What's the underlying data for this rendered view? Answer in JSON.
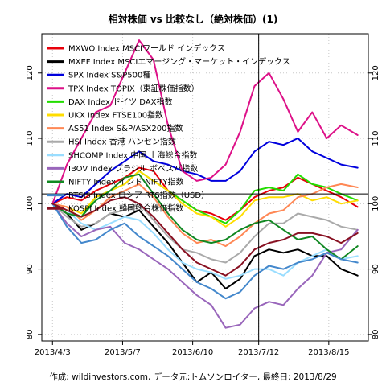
{
  "chart_data": {
    "type": "line",
    "title": "相対株価 vs 比較なし（絶対株価）(1)",
    "caption": "作成: wildinvestors.com, データ元:トムソンロイター, 最終日: 2013/8/29",
    "x_ticks": [
      "2013/4/3",
      "2013/5/7",
      "2013/6/10",
      "2013/7/12",
      "2013/8/15"
    ],
    "x": [
      "2013/4/3",
      "2013/4/10",
      "2013/4/17",
      "2013/4/24",
      "2013/5/1",
      "2013/5/8",
      "2013/5/15",
      "2013/5/22",
      "2013/5/29",
      "2013/6/5",
      "2013/6/12",
      "2013/6/19",
      "2013/6/26",
      "2013/7/3",
      "2013/7/10",
      "2013/7/17",
      "2013/7/24",
      "2013/7/31",
      "2013/8/7",
      "2013/8/14",
      "2013/8/21",
      "2013/8/29"
    ],
    "y_ticks": [
      80,
      90,
      100,
      110,
      120
    ],
    "ylim": [
      79,
      126
    ],
    "reference_line": 101.5,
    "cursor_date": "2013/7/12",
    "series": [
      {
        "name": "MXWO Index MSCIワールド インデックス",
        "color": "#e8000b",
        "values": [
          100,
          101,
          100.5,
          102,
          103,
          104,
          105.5,
          105,
          102,
          100.5,
          99,
          98.5,
          97.5,
          99,
          101,
          102,
          102.5,
          104,
          103,
          102,
          101,
          99.5
        ]
      },
      {
        "name": "MXEF Index MSCIエマージング・マーケット・インデックス",
        "color": "#000000",
        "values": [
          100,
          98.5,
          96,
          97,
          98.5,
          98,
          99,
          96.5,
          94,
          91,
          88,
          89.5,
          87,
          88.5,
          92,
          93,
          92.5,
          93,
          92,
          92,
          90,
          89
        ]
      },
      {
        "name": "SPX Index S&P500種",
        "color": "#0000dd",
        "values": [
          100,
          101.5,
          101,
          103,
          105,
          106.5,
          108,
          106.5,
          106,
          105,
          104.5,
          103.5,
          103.5,
          105,
          108,
          109.5,
          109,
          110,
          108,
          107,
          106,
          105.5
        ]
      },
      {
        "name": "TPX Index TOPIX（東証株価指数）",
        "color": "#dd1188",
        "values": [
          100,
          106,
          110,
          114,
          115,
          120,
          125,
          122,
          112,
          105,
          103.5,
          104,
          106,
          111,
          118,
          120,
          116,
          111,
          114,
          110,
          112,
          110.5
        ]
      },
      {
        "name": "DAX Index ドイツ DAX指数",
        "color": "#22dd00",
        "values": [
          100,
          99,
          98,
          101,
          102,
          103,
          105,
          103.5,
          102,
          100.5,
          99,
          98,
          97,
          99,
          102,
          102.5,
          102,
          104.5,
          103,
          102.5,
          101.5,
          100.5
        ]
      },
      {
        "name": "UKX Index FTSE100指数",
        "color": "#ffdd00",
        "values": [
          100,
          99.5,
          98.5,
          101,
          102,
          103,
          105,
          103.5,
          102,
          100,
          98.5,
          98,
          96.5,
          98,
          100.5,
          101,
          101,
          101.5,
          100.5,
          101,
          100,
          100.5
        ]
      },
      {
        "name": "AS51 Index S&P/ASX200指数",
        "color": "#ff8855",
        "values": [
          100,
          99.5,
          97.5,
          99,
          101,
          102,
          103,
          101,
          98,
          95.5,
          94,
          94.5,
          93.5,
          95,
          97,
          98.5,
          99,
          101,
          101.5,
          102.5,
          103,
          102.5
        ]
      },
      {
        "name": "HSI Index 香港 ハンセン指数",
        "color": "#aaaaaa",
        "values": [
          100,
          98,
          96.5,
          97,
          98.5,
          99,
          100,
          97.5,
          95,
          93,
          92.5,
          91.5,
          91,
          92.5,
          95,
          97,
          97,
          98.5,
          98,
          97.5,
          96.5,
          96
        ]
      },
      {
        "name": "SHCOMP Index 中国 上海総合指数",
        "color": "#99ddff",
        "values": [
          100,
          99,
          97,
          96,
          97,
          98,
          97.5,
          95.5,
          93,
          91,
          90,
          89.5,
          88.5,
          89,
          90,
          90,
          89,
          91,
          92,
          93,
          91.5,
          92
        ]
      },
      {
        "name": "IBOV Index ブラジル ボベスパ指数",
        "color": "#9966bb",
        "values": [
          100,
          97,
          95,
          96,
          96.5,
          94,
          93,
          91.5,
          90,
          88,
          86,
          84.5,
          81,
          81.5,
          84,
          85,
          84.5,
          87,
          89,
          92.5,
          93,
          96
        ]
      },
      {
        "name": "NIFTY Index インド NIFTY指数",
        "color": "#118822",
        "values": [
          100,
          98.5,
          98,
          100.5,
          102,
          104,
          104.5,
          101.5,
          98.5,
          96,
          94.5,
          94,
          94.5,
          96,
          97,
          97.5,
          96,
          94.5,
          95,
          93,
          91.5,
          93.5
        ]
      },
      {
        "name": "RTSI$ Index ロシア RTS指数（USD）",
        "color": "#4488cc",
        "values": [
          100,
          96.5,
          94,
          94.5,
          96,
          97,
          95,
          93.5,
          92,
          90,
          88,
          87,
          85.5,
          86.5,
          89,
          90.5,
          90,
          91,
          91.5,
          92.5,
          91.5,
          91
        ]
      },
      {
        "name": "KOSPI Index 韓国総合株価指数",
        "color": "#881122",
        "values": [
          100,
          99,
          98,
          99,
          100.5,
          101,
          100,
          98,
          95.5,
          93,
          91,
          90,
          89,
          90.5,
          93,
          94,
          94.5,
          95.5,
          95.5,
          95,
          94,
          95.5
        ]
      }
    ]
  }
}
